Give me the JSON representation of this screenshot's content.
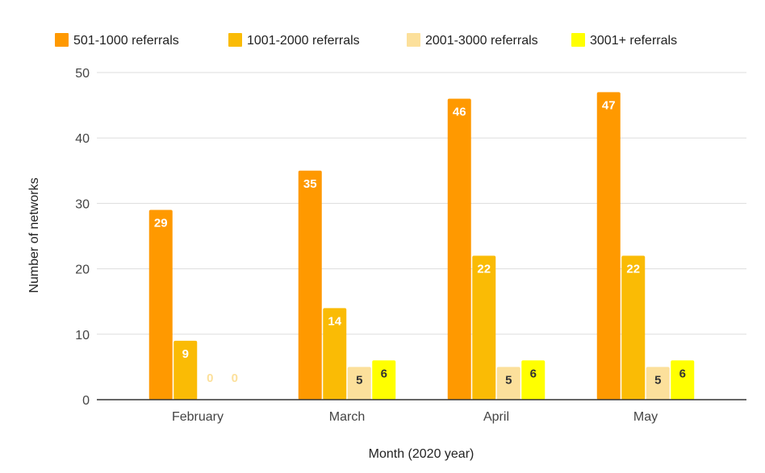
{
  "chart_data": {
    "type": "bar",
    "title": "",
    "xlabel": "Month (2020 year)",
    "ylabel": "Number of networks",
    "categories": [
      "February",
      "March",
      "April",
      "May"
    ],
    "ylim": [
      0,
      50
    ],
    "yticks": [
      0,
      10,
      20,
      30,
      40,
      50
    ],
    "grid": true,
    "legend_position": "top",
    "series": [
      {
        "name": "501-1000 referrals",
        "color": "#FF9900",
        "label_color": "#FFFFFF",
        "values": [
          29,
          35,
          46,
          47
        ]
      },
      {
        "name": "1001-2000 referrals",
        "color": "#FABB05",
        "label_color": "#FFFFFF",
        "values": [
          9,
          14,
          22,
          22
        ]
      },
      {
        "name": "2001-3000 referrals",
        "color": "#FCE09B",
        "label_color": "#333333",
        "values": [
          0,
          5,
          5,
          5
        ]
      },
      {
        "name": "3001+ referrals",
        "color": "#FFFF00",
        "label_color": "#333333",
        "values": [
          0,
          6,
          6,
          6
        ]
      }
    ],
    "zero_label_color": "#FCE09B"
  }
}
